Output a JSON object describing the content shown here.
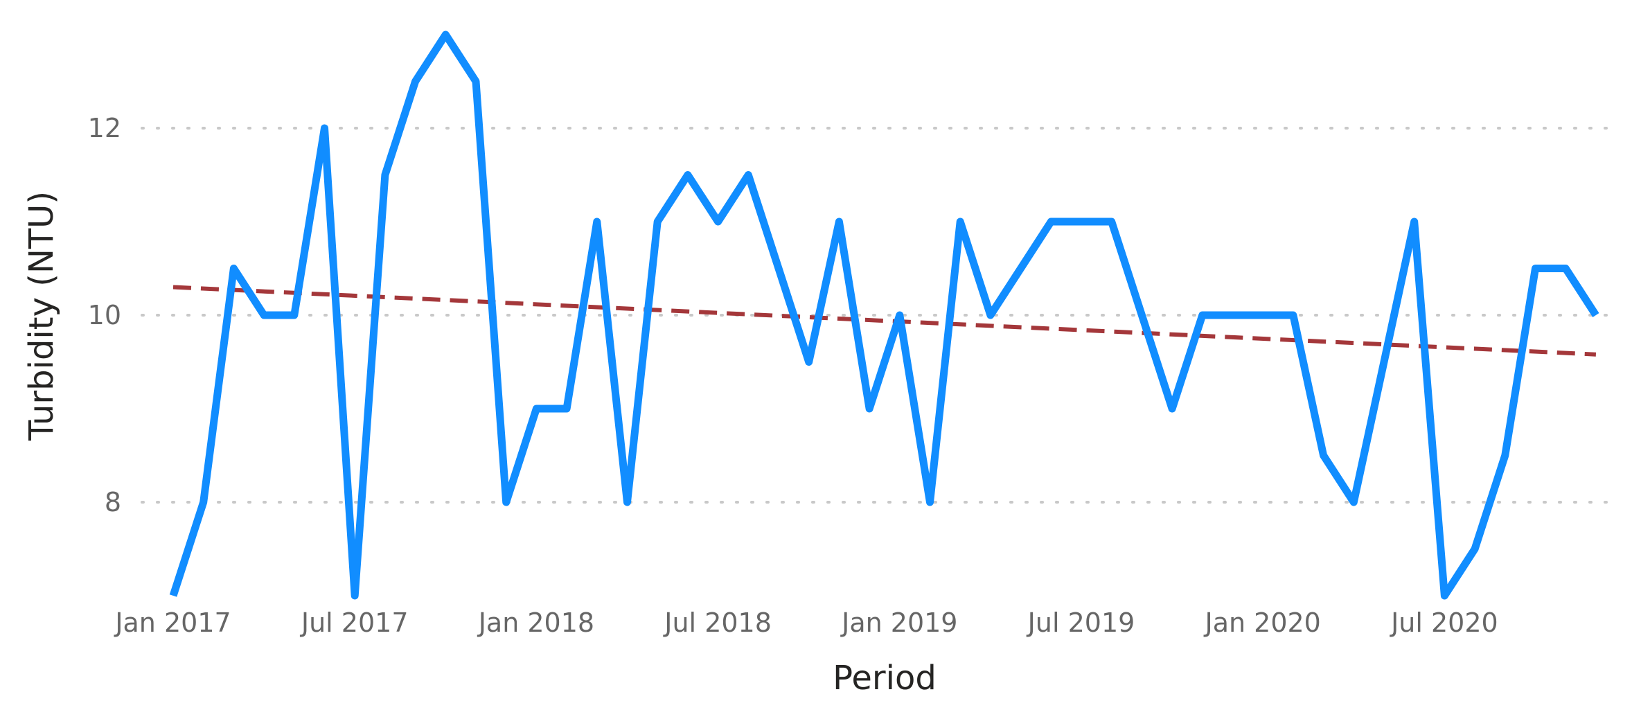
{
  "chart_data": {
    "type": "line",
    "xlabel": "Period",
    "ylabel": "Turbidity (NTU)",
    "ylim": [
      7,
      13
    ],
    "yticks": [
      8,
      10,
      12
    ],
    "grid": true,
    "x_tick_labels": [
      "Jan 2017",
      "Jul 2017",
      "Jan 2018",
      "Jul 2018",
      "Jan 2019",
      "Jul 2019",
      "Jan 2020",
      "Jul 2020"
    ],
    "x": [
      "2017-01",
      "2017-02",
      "2017-03",
      "2017-04",
      "2017-05",
      "2017-06",
      "2017-07",
      "2017-08",
      "2017-09",
      "2017-10",
      "2017-11",
      "2017-12",
      "2018-01",
      "2018-02",
      "2018-03",
      "2018-04",
      "2018-05",
      "2018-06",
      "2018-07",
      "2018-08",
      "2018-09",
      "2018-10",
      "2018-11",
      "2018-12",
      "2019-01",
      "2019-02",
      "2019-03",
      "2019-04",
      "2019-05",
      "2019-06",
      "2019-07",
      "2019-08",
      "2019-09",
      "2019-10",
      "2019-11",
      "2019-12",
      "2020-01",
      "2020-02",
      "2020-03",
      "2020-04",
      "2020-05",
      "2020-06",
      "2020-07",
      "2020-08",
      "2020-09",
      "2020-10",
      "2020-11",
      "2020-12"
    ],
    "series": [
      {
        "values": [
          7,
          8,
          10.5,
          10,
          10,
          12,
          7,
          11.5,
          12.5,
          13,
          12.5,
          8,
          9,
          9,
          11,
          8,
          11,
          11.5,
          11,
          11.5,
          10.5,
          9.5,
          11,
          9,
          10,
          8,
          11,
          10,
          10.5,
          11,
          11,
          11,
          10,
          9,
          10,
          10,
          10,
          10,
          8.5,
          8,
          9.5,
          11,
          7,
          7.5,
          8.5,
          10.5,
          10.5,
          10
        ],
        "color": "#118DFF"
      }
    ],
    "trendline": {
      "start": 10.3,
      "end": 9.58,
      "color": "#A4373A",
      "style": "dashed"
    }
  }
}
